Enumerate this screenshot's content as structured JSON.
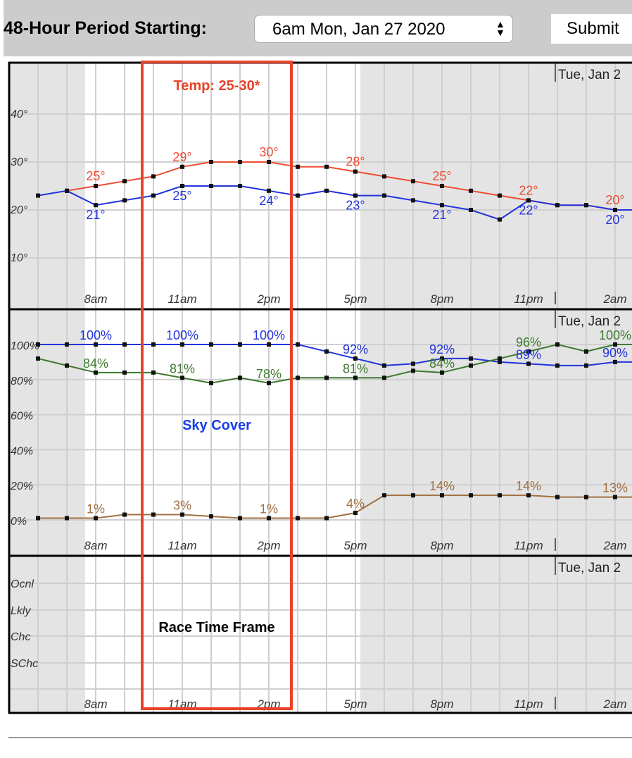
{
  "header": {
    "period_label": "48-Hour Period Starting:",
    "period_value": "6am Mon, Jan 27 2020",
    "submit_label": "Submit"
  },
  "annotations": {
    "temp_range": "Temp: 25-30*",
    "sky_cover": "Sky Cover",
    "race_time_frame": "Race Time Frame",
    "day_label": "Tue, Jan 2"
  },
  "colors": {
    "temperature": "#f04a32",
    "dewpoint": "#2233dd",
    "sky_cover": "#2233dd",
    "humidity": "#3d7a2e",
    "precip": "#a07040",
    "highlight_box": "#e8432a",
    "night_shade": "#e4e4e4"
  },
  "chart_data": [
    {
      "type": "line",
      "x": [
        "6am",
        "7am",
        "8am",
        "9am",
        "10am",
        "11am",
        "12pm",
        "1pm",
        "2pm",
        "3pm",
        "4pm",
        "5pm",
        "6pm",
        "7pm",
        "8pm",
        "9pm",
        "10pm",
        "11pm",
        "12am",
        "1am",
        "2am"
      ],
      "xtick_labels": [
        "8am",
        "11am",
        "2pm",
        "5pm",
        "8pm",
        "11pm",
        "2am"
      ],
      "ytick_labels": [
        "40°",
        "30°",
        "20°",
        "10°"
      ],
      "ylim": [
        5,
        50
      ],
      "grid": true,
      "series": [
        {
          "key": "temperature",
          "values": [
            null,
            24,
            25,
            26,
            27,
            29,
            30,
            30,
            30,
            29,
            29,
            28,
            27,
            26,
            25,
            24,
            23,
            22,
            21,
            21,
            20
          ],
          "labels": [
            "25°",
            "29°",
            "30°",
            "28°",
            "25°",
            "22°",
            "20°"
          ]
        },
        {
          "key": "dewpoint",
          "values": [
            23,
            24,
            21,
            22,
            23,
            25,
            25,
            25,
            24,
            23,
            24,
            23,
            23,
            22,
            21,
            20,
            18,
            22,
            21,
            21,
            20
          ],
          "labels": [
            "21°",
            "25°",
            "24°",
            "23°",
            "21°",
            "22°",
            "20°"
          ]
        }
      ]
    },
    {
      "type": "line",
      "x": [
        "6am",
        "7am",
        "8am",
        "9am",
        "10am",
        "11am",
        "12pm",
        "1pm",
        "2pm",
        "3pm",
        "4pm",
        "5pm",
        "6pm",
        "7pm",
        "8pm",
        "9pm",
        "10pm",
        "11pm",
        "12am",
        "1am",
        "2am"
      ],
      "xtick_labels": [
        "8am",
        "11am",
        "2pm",
        "5pm",
        "8pm",
        "11pm",
        "2am"
      ],
      "ytick_labels": [
        "100%",
        "80%",
        "60%",
        "40%",
        "20%",
        "0%"
      ],
      "ylim": [
        0,
        100
      ],
      "grid": true,
      "series": [
        {
          "key": "sky_cover",
          "values": [
            100,
            100,
            100,
            100,
            100,
            100,
            100,
            100,
            100,
            100,
            96,
            92,
            88,
            89,
            92,
            92,
            90,
            89,
            88,
            88,
            90
          ],
          "labels": [
            "100%",
            "100%",
            "100%",
            "92%",
            "92%",
            "89%",
            "90%"
          ]
        },
        {
          "key": "humidity",
          "values": [
            92,
            88,
            84,
            84,
            84,
            81,
            78,
            81,
            78,
            81,
            81,
            81,
            81,
            85,
            84,
            88,
            92,
            96,
            100,
            96,
            100
          ],
          "labels": [
            "84%",
            "81%",
            "78%",
            "81%",
            "84%",
            "96%",
            "100%"
          ]
        },
        {
          "key": "precip",
          "values": [
            1,
            1,
            1,
            3,
            3,
            3,
            2,
            1,
            1,
            1,
            1,
            4,
            14,
            14,
            14,
            14,
            14,
            14,
            13,
            13,
            13
          ],
          "labels": [
            "1%",
            "3%",
            "1%",
            "4%",
            "14%",
            "14%",
            "13%"
          ]
        }
      ]
    },
    {
      "type": "line",
      "x": [
        "6am",
        "7am",
        "8am",
        "9am",
        "10am",
        "11am",
        "12pm",
        "1pm",
        "2pm",
        "3pm",
        "4pm",
        "5pm",
        "6pm",
        "7pm",
        "8pm",
        "9pm",
        "10pm",
        "11pm",
        "12am",
        "1am",
        "2am"
      ],
      "xtick_labels": [
        "8am",
        "11am",
        "2pm",
        "5pm",
        "8pm",
        "11pm",
        "2am"
      ],
      "ytick_labels": [
        "Ocnl",
        "Lkly",
        "Chc",
        "SChc"
      ],
      "grid": true,
      "series": []
    }
  ]
}
